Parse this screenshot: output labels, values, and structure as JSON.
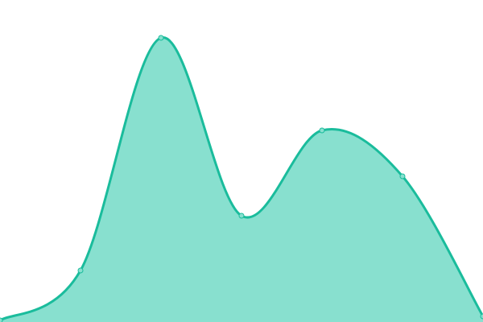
{
  "chart_data": {
    "type": "area",
    "x": [
      0,
      1,
      2,
      3,
      4,
      5,
      6
    ],
    "values": [
      2,
      64,
      353,
      132,
      238,
      181,
      7
    ],
    "ylim": [
      0,
      400
    ],
    "xlim": [
      0,
      6
    ],
    "smooth": true,
    "grid": false,
    "axes_visible": false,
    "legend": "none",
    "colors": {
      "line": "#1abc9c",
      "fill": "#88e0cf",
      "point_fill": "#88e0cf"
    }
  }
}
